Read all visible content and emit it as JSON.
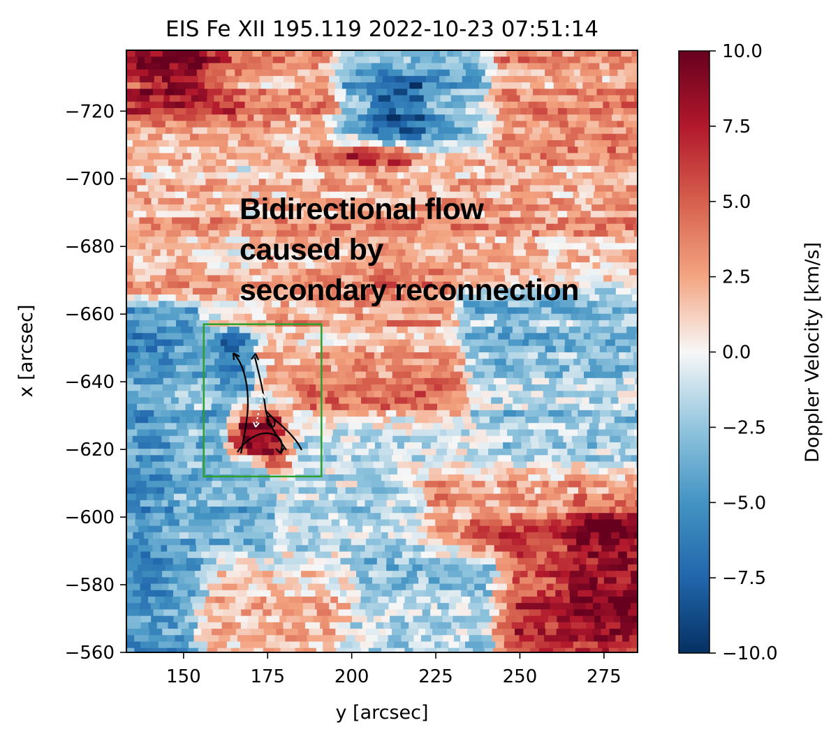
{
  "chart_data": {
    "type": "heatmap",
    "title": "EIS Fe XII 195.119  2022-10-23 07:51:14",
    "xlabel": "y [arcsec]",
    "ylabel": "x [arcsec]",
    "xlim": [
      133,
      285
    ],
    "ylim": [
      -560,
      -738
    ],
    "x_ticks": [
      150,
      175,
      200,
      225,
      250,
      275
    ],
    "x_tick_labels": [
      "150",
      "175",
      "200",
      "225",
      "250",
      "275"
    ],
    "y_ticks": [
      -720,
      -700,
      -680,
      -660,
      -640,
      -620,
      -600,
      -580,
      -560
    ],
    "y_tick_labels": [
      "−720",
      "−700",
      "−680",
      "−660",
      "−640",
      "−620",
      "−600",
      "−580",
      "−560"
    ],
    "colormap": "RdBu_r",
    "colorbar": {
      "label": "Doppler Velocity [km/s]",
      "vmin": -10.0,
      "vmax": 10.0,
      "ticks": [
        10.0,
        7.5,
        5.0,
        2.5,
        0.0,
        -2.5,
        -5.0,
        -7.5,
        -10.0
      ],
      "tick_labels": [
        "10.0",
        "7.5",
        "5.0",
        "2.5",
        "0.0",
        "−2.5",
        "−5.0",
        "−7.5",
        "−10.0"
      ]
    },
    "annotation": {
      "lines": [
        "Bidirectional flow",
        "caused by",
        "secondary reconnection"
      ],
      "position_data": [
        167,
        -688
      ]
    },
    "box": {
      "x0": 156,
      "x1": 191,
      "y0": -657,
      "y1": -612,
      "color": "#2ca02c"
    },
    "regions": [
      {
        "x0": 133,
        "x1": 150,
        "y0": -665,
        "y1": -560,
        "v": -5.0
      },
      {
        "x0": 150,
        "x1": 175,
        "y0": -650,
        "y1": -575,
        "v": -3.5
      },
      {
        "x0": 165,
        "x1": 178,
        "y0": -650,
        "y1": -625,
        "v": -7.0
      },
      {
        "x0": 168,
        "x1": 176,
        "y0": -628,
        "y1": -622,
        "v": 9.0
      },
      {
        "x0": 178,
        "x1": 184,
        "y0": -625,
        "y1": -619,
        "v": 8.5
      },
      {
        "x0": 135,
        "x1": 175,
        "y0": -738,
        "y1": -720,
        "v": 5.5
      },
      {
        "x0": 140,
        "x1": 152,
        "y0": -735,
        "y1": -728,
        "v": 9.0
      },
      {
        "x0": 170,
        "x1": 200,
        "y0": -738,
        "y1": -722,
        "v": 3.0
      },
      {
        "x0": 200,
        "x1": 250,
        "y0": -738,
        "y1": -712,
        "v": -3.5
      },
      {
        "x0": 210,
        "x1": 218,
        "y0": -725,
        "y1": -712,
        "v": -8.0
      },
      {
        "x0": 245,
        "x1": 285,
        "y0": -738,
        "y1": -700,
        "v": 3.0
      },
      {
        "x0": 195,
        "x1": 215,
        "y0": -705,
        "y1": -695,
        "v": 7.5
      },
      {
        "x0": 175,
        "x1": 285,
        "y0": -700,
        "y1": -640,
        "v": 2.5
      },
      {
        "x0": 205,
        "x1": 240,
        "y0": -675,
        "y1": -660,
        "v": 3.5
      },
      {
        "x0": 235,
        "x1": 285,
        "y0": -665,
        "y1": -605,
        "v": -2.5
      },
      {
        "x0": 190,
        "x1": 230,
        "y0": -645,
        "y1": -625,
        "v": 3.5
      },
      {
        "x0": 185,
        "x1": 235,
        "y0": -625,
        "y1": -590,
        "v": -1.5
      },
      {
        "x0": 225,
        "x1": 285,
        "y0": -610,
        "y1": -585,
        "v": 2.5
      },
      {
        "x0": 240,
        "x1": 285,
        "y0": -595,
        "y1": -560,
        "v": 6.5
      },
      {
        "x0": 268,
        "x1": 285,
        "y0": -598,
        "y1": -570,
        "v": 9.0
      },
      {
        "x0": 195,
        "x1": 240,
        "y0": -585,
        "y1": -560,
        "v": -2.0
      },
      {
        "x0": 133,
        "x1": 160,
        "y0": -700,
        "y1": -668,
        "v": 2.5
      },
      {
        "x0": 160,
        "x1": 195,
        "y0": -585,
        "y1": -560,
        "v": 1.5
      }
    ]
  }
}
